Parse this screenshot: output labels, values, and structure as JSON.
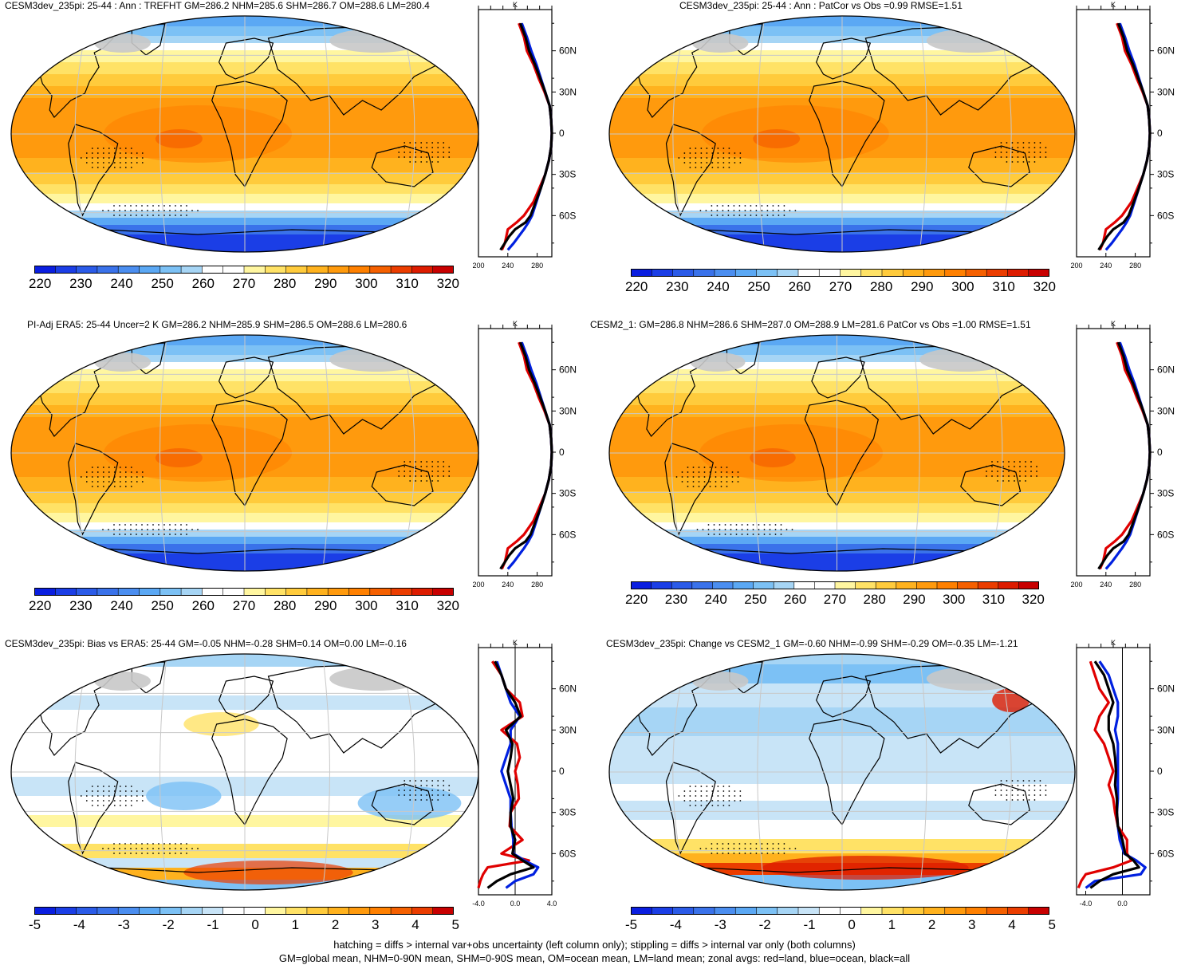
{
  "panels": [
    {
      "title": "CESM3dev_235pi: 25-44 : Ann : TREFHT GM=286.2 NHM=285.6 SHM=286.7 OM=288.6 LM=280.4",
      "cbar_labels": [
        "220",
        "230",
        "240",
        "250",
        "260",
        "270",
        "280",
        "290",
        "300",
        "310",
        "320"
      ],
      "profile_unit": "K",
      "profile_lat_labels": [
        "60N",
        "30N",
        "0",
        "30S",
        "60S"
      ],
      "profile_x_labels": [
        "200",
        "240",
        "280"
      ]
    },
    {
      "title": "CESM3dev_235pi: 25-44 : Ann : PatCor vs Obs =0.99 RMSE=1.51",
      "cbar_labels": [
        "220",
        "230",
        "240",
        "250",
        "260",
        "270",
        "280",
        "290",
        "300",
        "310",
        "320"
      ],
      "profile_unit": "K",
      "profile_lat_labels": [
        "60N",
        "30N",
        "0",
        "30S",
        "60S"
      ],
      "profile_x_labels": [
        "200",
        "240",
        "280"
      ]
    },
    {
      "title": "PI-Adj ERA5: 25-44 Uncer=2 K GM=286.2 NHM=285.9 SHM=286.5 OM=288.6 LM=280.6",
      "cbar_labels": [
        "220",
        "230",
        "240",
        "250",
        "260",
        "270",
        "280",
        "290",
        "300",
        "310",
        "320"
      ],
      "profile_unit": "K",
      "profile_lat_labels": [
        "60N",
        "30N",
        "0",
        "30S",
        "60S"
      ],
      "profile_x_labels": [
        "200",
        "240",
        "280"
      ]
    },
    {
      "title": "CESM2_1: GM=286.8 NHM=286.6 SHM=287.0 OM=288.9 LM=281.6 PatCor vs Obs =1.00 RMSE=1.51",
      "cbar_labels": [
        "220",
        "230",
        "240",
        "250",
        "260",
        "270",
        "280",
        "290",
        "300",
        "310",
        "320"
      ],
      "profile_unit": "K",
      "profile_lat_labels": [
        "60N",
        "30N",
        "0",
        "30S",
        "60S"
      ],
      "profile_x_labels": [
        "200",
        "240",
        "280"
      ]
    },
    {
      "title": "CESM3dev_235pi: Bias vs ERA5: 25-44 GM=-0.05 NHM=-0.28 SHM=0.14 OM=0.00 LM=-0.16",
      "cbar_labels": [
        "-5",
        "-4",
        "-3",
        "-2",
        "-1",
        "0",
        "1",
        "2",
        "3",
        "4",
        "5"
      ],
      "profile_unit": "K",
      "profile_lat_labels": [
        "60N",
        "30N",
        "0",
        "30S",
        "60S"
      ],
      "profile_x_labels": [
        "-4.0",
        "0.0",
        "4.0"
      ]
    },
    {
      "title": "CESM3dev_235pi: Change vs CESM2_1 GM=-0.60 NHM=-0.99 SHM=-0.29 OM=-0.35 LM=-1.21",
      "cbar_labels": [
        "-5",
        "-4",
        "-3",
        "-2",
        "-1",
        "0",
        "1",
        "2",
        "3",
        "4",
        "5"
      ],
      "profile_unit": "K",
      "profile_lat_labels": [
        "60N",
        "30N",
        "0",
        "30S",
        "60S"
      ],
      "profile_x_labels": [
        "-4.0",
        "0.0"
      ]
    }
  ],
  "footer": {
    "line1": "hatching = diffs > internal var+obs uncertainty (left column only); stippling = diffs > internal var only (both columns)",
    "line2": "GM=global mean, NHM=0-90N mean, SHM=0-90S mean, OM=ocean mean, LM=land mean; zonal avgs: red=land, blue=ocean, black=all"
  },
  "chart_data": [
    {
      "type": "heatmap",
      "title": "CESM3dev_235pi: 25-44 : Ann : TREFHT GM=286.2 NHM=285.6 SHM=286.7 OM=288.6 LM=280.4",
      "colorbar_range": [
        215,
        325
      ],
      "colorbar_ticks": [
        220,
        230,
        240,
        250,
        260,
        270,
        280,
        290,
        300,
        310,
        320
      ],
      "zonal_profile": {
        "xlabel": "K",
        "xlim": [
          200,
          300
        ],
        "ylim": [
          -90,
          90
        ],
        "lat": [
          80,
          70,
          60,
          50,
          40,
          30,
          20,
          10,
          0,
          -10,
          -20,
          -30,
          -40,
          -50,
          -60,
          -65,
          -70,
          -75,
          -80,
          -85
        ],
        "series": [
          {
            "name": "land",
            "color": "#e00000",
            "values": [
              255,
              262,
              266,
              275,
              282,
              290,
              297,
              299,
              300,
              299,
              296,
              291,
              283,
              275,
              262,
              252,
              240,
              238,
              236,
              232
            ]
          },
          {
            "name": "ocean",
            "color": "#0020e0",
            "values": [
              259,
              266,
              272,
              279,
              285,
              291,
              297,
              299,
              300,
              299,
              296,
              291,
              285,
              279,
              273,
              268,
              262,
              255,
              248,
              240
            ]
          },
          {
            "name": "all",
            "color": "#000000",
            "values": [
              257,
              264,
              269,
              277,
              284,
              291,
              297,
              299,
              300,
              299,
              296,
              291,
              285,
              278,
              271,
              264,
              250,
              242,
              236,
              230
            ]
          }
        ]
      }
    },
    {
      "type": "heatmap",
      "title": "CESM3dev_235pi: 25-44 : Ann : PatCor vs Obs =0.99 RMSE=1.51",
      "colorbar_range": [
        215,
        325
      ],
      "colorbar_ticks": [
        220,
        230,
        240,
        250,
        260,
        270,
        280,
        290,
        300,
        310,
        320
      ],
      "zonal_profile": {
        "xlabel": "K",
        "xlim": [
          200,
          300
        ],
        "ylim": [
          -90,
          90
        ],
        "lat": [
          80,
          70,
          60,
          50,
          40,
          30,
          20,
          10,
          0,
          -10,
          -20,
          -30,
          -40,
          -50,
          -60,
          -65,
          -70,
          -75,
          -80,
          -85
        ],
        "series": [
          {
            "name": "land",
            "color": "#e00000",
            "values": [
              255,
              262,
              266,
              275,
              282,
              290,
              297,
              299,
              300,
              299,
              296,
              291,
              283,
              275,
              262,
              252,
              240,
              238,
              236,
              232
            ]
          },
          {
            "name": "ocean",
            "color": "#0020e0",
            "values": [
              259,
              266,
              272,
              279,
              285,
              291,
              297,
              299,
              300,
              299,
              296,
              291,
              285,
              279,
              273,
              268,
              262,
              255,
              248,
              240
            ]
          },
          {
            "name": "all",
            "color": "#000000",
            "values": [
              257,
              264,
              269,
              277,
              284,
              291,
              297,
              299,
              300,
              299,
              296,
              291,
              285,
              278,
              271,
              264,
              250,
              242,
              236,
              230
            ]
          }
        ]
      }
    },
    {
      "type": "heatmap",
      "title": "PI-Adj ERA5: 25-44 Uncer=2 K GM=286.2 NHM=285.9 SHM=286.5 OM=288.6 LM=280.6",
      "colorbar_range": [
        215,
        325
      ],
      "colorbar_ticks": [
        220,
        230,
        240,
        250,
        260,
        270,
        280,
        290,
        300,
        310,
        320
      ],
      "zonal_profile": {
        "xlabel": "K",
        "xlim": [
          200,
          300
        ],
        "ylim": [
          -90,
          90
        ],
        "lat": [
          80,
          70,
          60,
          50,
          40,
          30,
          20,
          10,
          0,
          -10,
          -20,
          -30,
          -40,
          -50,
          -60,
          -65,
          -70,
          -75,
          -80,
          -85
        ],
        "series": [
          {
            "name": "land",
            "color": "#e00000",
            "values": [
              255,
              262,
              266,
              275,
              282,
              290,
              297,
              299,
              300,
              299,
              296,
              291,
              283,
              275,
              262,
              252,
              240,
              238,
              236,
              232
            ]
          },
          {
            "name": "ocean",
            "color": "#0020e0",
            "values": [
              259,
              266,
              272,
              279,
              285,
              291,
              297,
              299,
              300,
              299,
              296,
              291,
              285,
              279,
              273,
              268,
              262,
              255,
              248,
              240
            ]
          },
          {
            "name": "all",
            "color": "#000000",
            "values": [
              257,
              264,
              269,
              277,
              284,
              291,
              297,
              299,
              300,
              299,
              296,
              291,
              285,
              278,
              271,
              264,
              250,
              242,
              236,
              230
            ]
          }
        ]
      }
    },
    {
      "type": "heatmap",
      "title": "CESM2_1: GM=286.8 NHM=286.6 SHM=287.0 OM=288.9 LM=281.6 PatCor vs Obs =1.00 RMSE=1.51",
      "colorbar_range": [
        215,
        325
      ],
      "colorbar_ticks": [
        220,
        230,
        240,
        250,
        260,
        270,
        280,
        290,
        300,
        310,
        320
      ],
      "zonal_profile": {
        "xlabel": "K",
        "xlim": [
          200,
          300
        ],
        "ylim": [
          -90,
          90
        ],
        "lat": [
          80,
          70,
          60,
          50,
          40,
          30,
          20,
          10,
          0,
          -10,
          -20,
          -30,
          -40,
          -50,
          -60,
          -65,
          -70,
          -75,
          -80,
          -85
        ],
        "series": [
          {
            "name": "land",
            "color": "#e00000",
            "values": [
              255,
              262,
              266,
              275,
              282,
              290,
              297,
              299,
              300,
              299,
              296,
              291,
              283,
              275,
              262,
              252,
              240,
              238,
              236,
              232
            ]
          },
          {
            "name": "ocean",
            "color": "#0020e0",
            "values": [
              259,
              266,
              272,
              279,
              285,
              291,
              297,
              299,
              300,
              299,
              296,
              291,
              285,
              279,
              273,
              268,
              262,
              255,
              248,
              240
            ]
          },
          {
            "name": "all",
            "color": "#000000",
            "values": [
              257,
              264,
              269,
              277,
              284,
              291,
              297,
              299,
              300,
              299,
              296,
              291,
              285,
              278,
              271,
              264,
              250,
              242,
              236,
              230
            ]
          }
        ]
      }
    },
    {
      "type": "heatmap",
      "title": "CESM3dev_235pi: Bias vs ERA5: 25-44 GM=-0.05 NHM=-0.28 SHM=0.14 OM=0.00 LM=-0.16",
      "colorbar_range": [
        -5.5,
        5.5
      ],
      "colorbar_ticks": [
        -5,
        -4,
        -3,
        -2,
        -1,
        0,
        1,
        2,
        3,
        4,
        5
      ],
      "zonal_profile": {
        "xlabel": "K",
        "xlim": [
          -4,
          4
        ],
        "ylim": [
          -90,
          90
        ],
        "lat": [
          80,
          70,
          60,
          50,
          40,
          30,
          20,
          10,
          0,
          -10,
          -20,
          -30,
          -40,
          -50,
          -60,
          -65,
          -70,
          -75,
          -80,
          -85
        ],
        "series": [
          {
            "name": "land",
            "color": "#e00000",
            "values": [
              -2.5,
              -1.5,
              -1.0,
              0.5,
              0.8,
              -1.5,
              0.2,
              0.5,
              0.0,
              0.3,
              0.4,
              -0.5,
              -0.6,
              0.8,
              -1.5,
              1.5,
              -3.0,
              -3.5,
              -3.8,
              -4.0
            ]
          },
          {
            "name": "ocean",
            "color": "#0020e0",
            "values": [
              -2.0,
              -1.5,
              -1.0,
              -0.5,
              0.5,
              -0.5,
              -0.5,
              -1.0,
              -1.5,
              -1.0,
              -0.5,
              -0.5,
              -0.4,
              -0.2,
              -0.2,
              1.0,
              2.5,
              2.0,
              0.0,
              -1.0
            ]
          },
          {
            "name": "all",
            "color": "#000000",
            "values": [
              -2.2,
              -1.5,
              -1.0,
              0.0,
              0.6,
              -1.0,
              -0.3,
              -0.5,
              -0.8,
              -0.5,
              -0.2,
              -0.5,
              -0.5,
              0.0,
              -0.3,
              0.8,
              2.0,
              -0.5,
              -2.0,
              -3.0
            ]
          }
        ]
      }
    },
    {
      "type": "heatmap",
      "title": "CESM3dev_235pi: Change vs CESM2_1 GM=-0.60 NHM=-0.99 SHM=-0.29 OM=-0.35 LM=-1.21",
      "colorbar_range": [
        -5.5,
        5.5
      ],
      "colorbar_ticks": [
        -5,
        -4,
        -3,
        -2,
        -1,
        0,
        1,
        2,
        3,
        4,
        5
      ],
      "zonal_profile": {
        "xlabel": "K",
        "xlim": [
          -5,
          3
        ],
        "ylim": [
          -90,
          90
        ],
        "lat": [
          80,
          70,
          60,
          50,
          40,
          30,
          20,
          10,
          0,
          -10,
          -20,
          -30,
          -40,
          -50,
          -60,
          -65,
          -70,
          -75,
          -80,
          -85
        ],
        "series": [
          {
            "name": "land",
            "color": "#e00000",
            "values": [
              -3.5,
              -3.0,
              -2.5,
              -1.5,
              -2.5,
              -3.0,
              -2.0,
              -1.5,
              -1.0,
              -1.5,
              -1.0,
              -0.8,
              -0.5,
              0.5,
              0.5,
              1.0,
              -1.0,
              -4.0,
              -4.5,
              -4.8
            ]
          },
          {
            "name": "ocean",
            "color": "#0020e0",
            "values": [
              -2.5,
              -1.5,
              -1.0,
              -0.5,
              -0.5,
              -0.8,
              -0.5,
              -0.5,
              -0.5,
              -0.5,
              -0.5,
              -0.6,
              -0.5,
              -0.3,
              0.2,
              1.5,
              2.5,
              2.0,
              -3.0,
              -4.0
            ]
          },
          {
            "name": "all",
            "color": "#000000",
            "values": [
              -3.0,
              -2.0,
              -1.5,
              -1.0,
              -1.5,
              -1.5,
              -1.0,
              -0.8,
              -0.7,
              -0.8,
              -0.6,
              -0.6,
              -0.5,
              0.0,
              0.3,
              1.2,
              1.8,
              -1.0,
              -2.5,
              -3.5
            ]
          }
        ]
      }
    }
  ]
}
